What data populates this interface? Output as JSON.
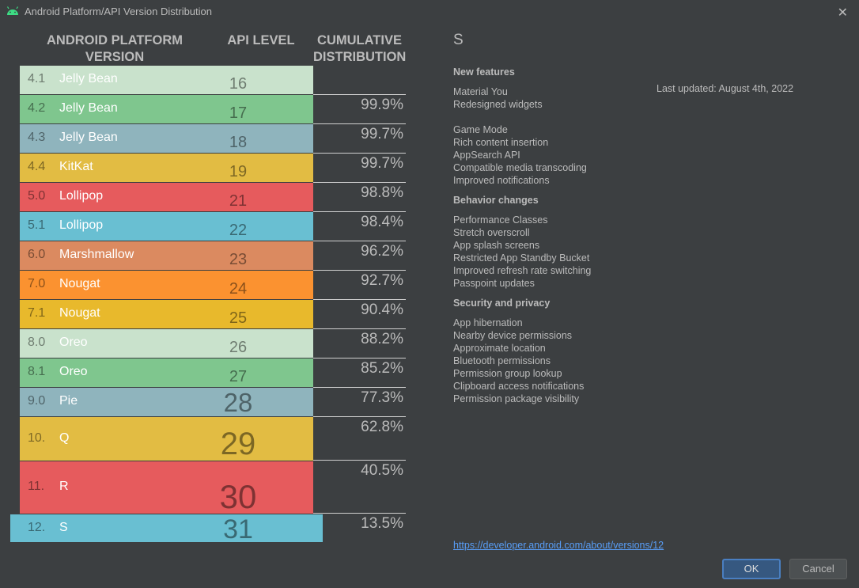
{
  "window": {
    "title": "Android Platform/API Version Distribution",
    "close_glyph": "✕"
  },
  "table": {
    "headers": {
      "platform_line1": "ANDROID PLATFORM",
      "platform_line2": "VERSION",
      "api": "API LEVEL",
      "cumulative_line1": "CUMULATIVE",
      "cumulative_line2": "DISTRIBUTION"
    },
    "rows": [
      {
        "version": "4.1",
        "name": "Jelly Bean",
        "api": "16",
        "cumulative": "",
        "color": "#c9e2cc"
      },
      {
        "version": "4.2",
        "name": "Jelly Bean",
        "api": "17",
        "cumulative": "99.9%",
        "color": "#7fc68e"
      },
      {
        "version": "4.3",
        "name": "Jelly Bean",
        "api": "18",
        "cumulative": "99.7%",
        "color": "#8fb4bd"
      },
      {
        "version": "4.4",
        "name": "KitKat",
        "api": "19",
        "cumulative": "99.7%",
        "color": "#e2bc43"
      },
      {
        "version": "5.0",
        "name": "Lollipop",
        "api": "21",
        "cumulative": "98.8%",
        "color": "#e65b5d"
      },
      {
        "version": "5.1",
        "name": "Lollipop",
        "api": "22",
        "cumulative": "98.4%",
        "color": "#69bfd2"
      },
      {
        "version": "6.0",
        "name": "Marshmallow",
        "api": "23",
        "cumulative": "96.2%",
        "color": "#db8a60"
      },
      {
        "version": "7.0",
        "name": "Nougat",
        "api": "24",
        "cumulative": "92.7%",
        "color": "#fb9230"
      },
      {
        "version": "7.1",
        "name": "Nougat",
        "api": "25",
        "cumulative": "90.4%",
        "color": "#e8b92c"
      },
      {
        "version": "8.0",
        "name": "Oreo",
        "api": "26",
        "cumulative": "88.2%",
        "color": "#c9e2cc"
      },
      {
        "version": "8.1",
        "name": "Oreo",
        "api": "27",
        "cumulative": "85.2%",
        "color": "#7fc68e"
      },
      {
        "version": "9.0",
        "name": "Pie",
        "api": "28",
        "cumulative": "77.3%",
        "color": "#8fb4bd"
      },
      {
        "version": "10.",
        "name": "Q",
        "api": "29",
        "cumulative": "62.8%",
        "color": "#e2bc43"
      },
      {
        "version": "11.",
        "name": "R",
        "api": "30",
        "cumulative": "40.5%",
        "color": "#e65b5d"
      },
      {
        "version": "12.",
        "name": "S",
        "api": "31",
        "cumulative": "13.5%",
        "color": "#69bfd2"
      }
    ]
  },
  "detail": {
    "version_title": "S",
    "last_updated": "Last updated: August 4th, 2022",
    "sections": [
      {
        "title": "New features",
        "groups": [
          [
            "Material You",
            "Redesigned widgets"
          ],
          [
            "Game Mode",
            "Rich content insertion",
            "AppSearch API",
            "Compatible media transcoding",
            "Improved notifications"
          ]
        ]
      },
      {
        "title": "Behavior changes",
        "groups": [
          [
            "Performance Classes",
            "Stretch overscroll",
            "App splash screens",
            "Restricted App Standby Bucket",
            "Improved refresh rate switching",
            "Passpoint updates"
          ]
        ]
      },
      {
        "title": "Security and privacy",
        "groups": [
          [
            "App hibernation",
            "Nearby device permissions",
            "Approximate location",
            "Bluetooth permissions",
            "Permission group lookup",
            "Clipboard access notifications",
            "Permission package visibility"
          ]
        ]
      }
    ],
    "link": "https://developer.android.com/about/versions/12"
  },
  "buttons": {
    "ok": "OK",
    "cancel": "Cancel"
  }
}
